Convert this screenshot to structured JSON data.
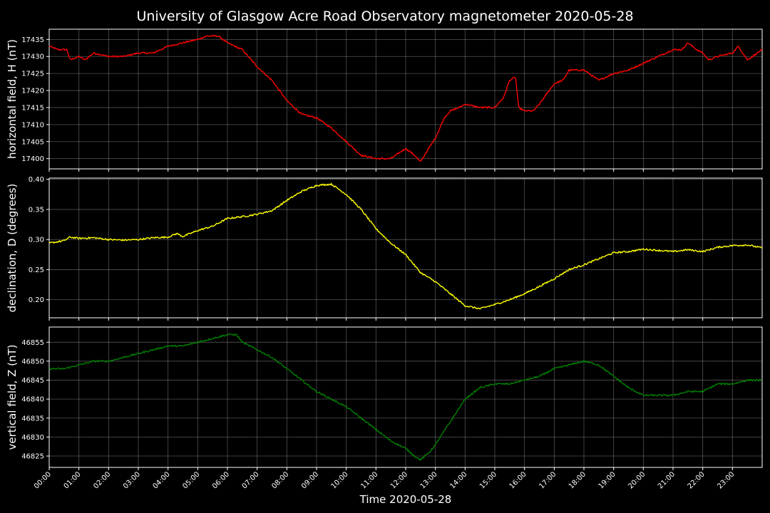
{
  "chart_data": {
    "type": "line",
    "title": "University of Glasgow Acre Road Observatory magnetometer 2020-05-28",
    "xlabel": "Time 2020-05-28",
    "x_unit": "hours",
    "x_ticks": [
      "00:00",
      "01:00",
      "02:00",
      "03:00",
      "04:00",
      "05:00",
      "06:00",
      "07:00",
      "08:00",
      "09:00",
      "10:00",
      "11:00",
      "12:00",
      "13:00",
      "14:00",
      "15:00",
      "16:00",
      "17:00",
      "18:00",
      "19:00",
      "20:00",
      "21:00",
      "22:00",
      "23:00"
    ],
    "xlim": [
      0,
      24
    ],
    "grid": true,
    "background": "#000000",
    "panels": [
      {
        "ylabel": "horizontal field, H (nT)",
        "color": "#ff0000",
        "ylim": [
          17397,
          17438
        ],
        "yticks": [
          17400,
          17405,
          17410,
          17415,
          17420,
          17425,
          17430,
          17435
        ],
        "series": {
          "x": [
            0,
            0.3,
            0.6,
            0.7,
            1.0,
            1.2,
            1.5,
            2.0,
            2.5,
            3.0,
            3.5,
            4.0,
            4.5,
            5.0,
            5.3,
            5.7,
            6.0,
            6.5,
            7.0,
            7.5,
            8.0,
            8.5,
            9.0,
            9.5,
            10.0,
            10.5,
            11.0,
            11.5,
            12.0,
            12.3,
            12.5,
            12.7,
            13.0,
            13.3,
            13.5,
            13.8,
            14.0,
            14.5,
            15.0,
            15.3,
            15.5,
            15.7,
            15.8,
            16.0,
            16.3,
            16.5,
            17.0,
            17.3,
            17.5,
            18.0,
            18.5,
            19.0,
            19.5,
            20.0,
            20.5,
            21.0,
            21.3,
            21.5,
            21.8,
            22.0,
            22.2,
            22.5,
            23.0,
            23.2,
            23.5,
            24.0
          ],
          "y": [
            17433,
            17432,
            17432,
            17429,
            17430,
            17429,
            17431,
            17430,
            17430,
            17431,
            17431,
            17433,
            17434,
            17435,
            17436,
            17436,
            17434,
            17432,
            17427,
            17423,
            17417,
            17413,
            17412,
            17409,
            17405,
            17401,
            17400,
            17400,
            17403,
            17401,
            17399,
            17402,
            17406,
            17412,
            17414,
            17415,
            17416,
            17415,
            17415,
            17418,
            17423,
            17424,
            17415,
            17414,
            17414,
            17416,
            17422,
            17423,
            17426,
            17426,
            17423,
            17425,
            17426,
            17428,
            17430,
            17432,
            17432,
            17434,
            17432,
            17431,
            17429,
            17430,
            17431,
            17433,
            17429,
            17432
          ]
        }
      },
      {
        "ylabel": "declination, D (degrees)",
        "color": "#ffff00",
        "ylim": [
          0.17,
          0.402
        ],
        "yticks": [
          0.2,
          0.25,
          0.3,
          0.35,
          0.4
        ],
        "series": {
          "x": [
            0,
            0.5,
            0.7,
            1.0,
            1.5,
            2.0,
            2.5,
            3.0,
            3.5,
            4.0,
            4.3,
            4.5,
            5.0,
            5.5,
            6.0,
            6.5,
            7.0,
            7.5,
            8.0,
            8.5,
            9.0,
            9.5,
            10.0,
            10.5,
            11.0,
            11.5,
            12.0,
            12.5,
            13.0,
            13.5,
            14.0,
            14.5,
            15.0,
            15.5,
            16.0,
            16.5,
            17.0,
            17.5,
            18.0,
            18.5,
            19.0,
            19.5,
            20.0,
            20.5,
            21.0,
            21.5,
            22.0,
            22.5,
            23.0,
            23.5,
            24.0
          ],
          "y": [
            0.294,
            0.298,
            0.304,
            0.302,
            0.303,
            0.3,
            0.299,
            0.3,
            0.303,
            0.304,
            0.31,
            0.305,
            0.315,
            0.322,
            0.335,
            0.338,
            0.342,
            0.348,
            0.365,
            0.38,
            0.39,
            0.392,
            0.375,
            0.35,
            0.318,
            0.294,
            0.275,
            0.245,
            0.23,
            0.21,
            0.19,
            0.185,
            0.192,
            0.2,
            0.21,
            0.222,
            0.235,
            0.25,
            0.258,
            0.268,
            0.278,
            0.28,
            0.284,
            0.282,
            0.28,
            0.283,
            0.28,
            0.287,
            0.29,
            0.291,
            0.286
          ]
        }
      },
      {
        "ylabel": "vertical field, Z (nT)",
        "color": "#008000",
        "ylim": [
          46822,
          46859
        ],
        "yticks": [
          46825,
          46830,
          46835,
          46840,
          46845,
          46850,
          46855
        ],
        "series": {
          "x": [
            0,
            0.5,
            1.0,
            1.5,
            2.0,
            2.5,
            3.0,
            3.5,
            4.0,
            4.5,
            5.0,
            5.5,
            6.0,
            6.3,
            6.5,
            7.0,
            7.5,
            8.0,
            8.5,
            9.0,
            9.5,
            10.0,
            10.5,
            11.0,
            11.5,
            12.0,
            12.3,
            12.5,
            12.8,
            13.0,
            13.5,
            14.0,
            14.5,
            15.0,
            15.5,
            16.0,
            16.5,
            17.0,
            17.5,
            18.0,
            18.5,
            19.0,
            19.5,
            20.0,
            20.5,
            21.0,
            21.5,
            22.0,
            22.5,
            23.0,
            23.5,
            24.0
          ],
          "y": [
            46848,
            46848,
            46849,
            46850,
            46850,
            46851,
            46852,
            46853,
            46854,
            46854,
            46855,
            46856,
            46857,
            46857,
            46855,
            46853,
            46851,
            46848,
            46845,
            46842,
            46840,
            46838,
            46835,
            46832,
            46829,
            46827,
            46825,
            46824,
            46826,
            46828,
            46834,
            46840,
            46843,
            46844,
            46844,
            46845,
            46846,
            46848,
            46849,
            46850,
            46849,
            46846,
            46843,
            46841,
            46841,
            46841,
            46842,
            46842,
            46844,
            46844,
            46845,
            46845
          ]
        }
      }
    ]
  }
}
